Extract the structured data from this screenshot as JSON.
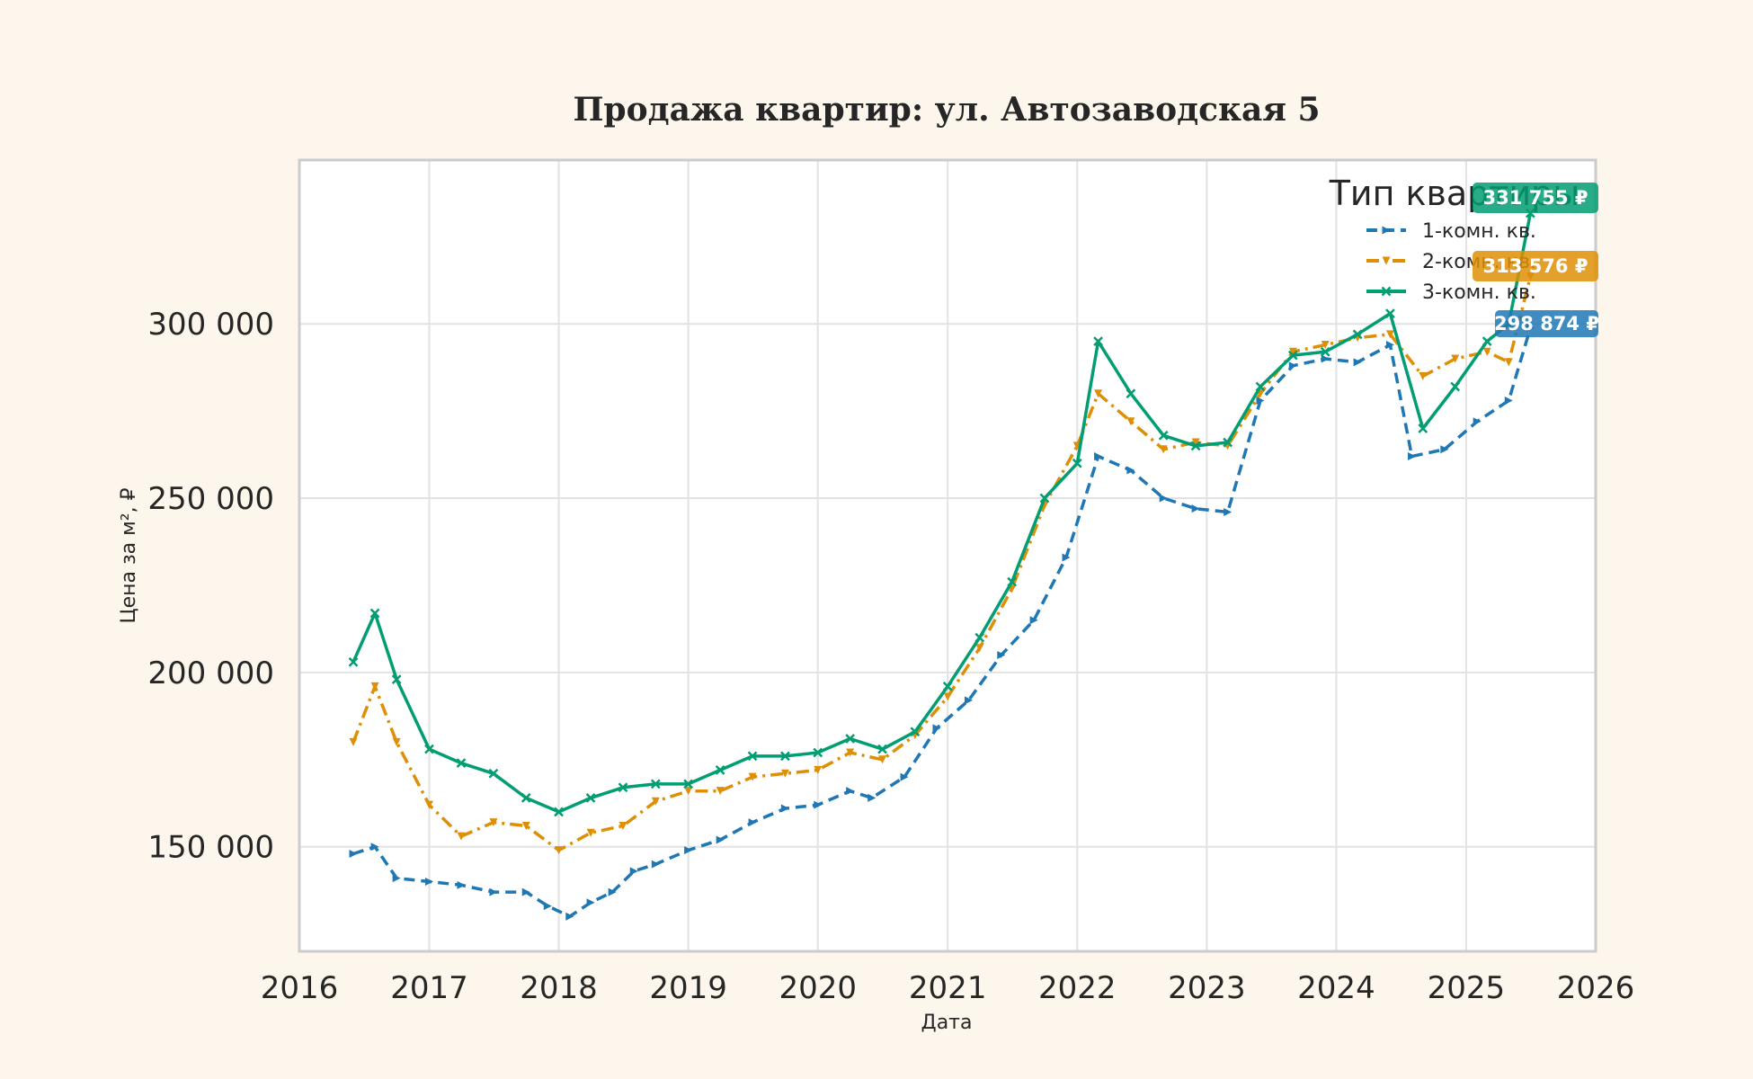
{
  "chart_data": {
    "type": "line",
    "title": "Продажа квартир: ул. Автозаводская 5",
    "xlabel": "Дата",
    "ylabel": "Цена за м², ₽",
    "xlim": [
      "2016-01-01",
      "2026-01-01"
    ],
    "ylim": [
      120000,
      347000
    ],
    "x_ticks": [
      "2016",
      "2017",
      "2018",
      "2019",
      "2020",
      "2021",
      "2022",
      "2023",
      "2024",
      "2025",
      "2026"
    ],
    "y_ticks": [
      150000,
      200000,
      250000,
      300000
    ],
    "y_tick_labels": [
      "150 000",
      "200 000",
      "250 000",
      "300 000"
    ],
    "grid": true,
    "legend": {
      "title": "Тип квартиры",
      "position": "top-right",
      "entries": [
        "1-комн. кв.",
        "2-комн. кв.",
        "3-комн. кв."
      ]
    },
    "series": [
      {
        "name": "1-комн. кв.",
        "color": "#1f77b4",
        "dash": "dashed",
        "marker": "triangle-right",
        "last_value_label": "298 874 ₽",
        "points": [
          [
            "2016-06-01",
            148000
          ],
          [
            "2016-08-01",
            150000
          ],
          [
            "2016-10-01",
            141000
          ],
          [
            "2017-01-01",
            140000
          ],
          [
            "2017-04-01",
            139000
          ],
          [
            "2017-07-01",
            137000
          ],
          [
            "2017-10-01",
            137000
          ],
          [
            "2017-12-01",
            133000
          ],
          [
            "2018-02-01",
            130000
          ],
          [
            "2018-04-01",
            134000
          ],
          [
            "2018-06-01",
            137000
          ],
          [
            "2018-08-01",
            143000
          ],
          [
            "2018-10-01",
            145000
          ],
          [
            "2019-01-01",
            149000
          ],
          [
            "2019-04-01",
            152000
          ],
          [
            "2019-07-01",
            157000
          ],
          [
            "2019-10-01",
            161000
          ],
          [
            "2020-01-01",
            162000
          ],
          [
            "2020-04-01",
            166000
          ],
          [
            "2020-06-01",
            164000
          ],
          [
            "2020-09-01",
            170000
          ],
          [
            "2020-12-01",
            184000
          ],
          [
            "2021-03-01",
            192000
          ],
          [
            "2021-06-01",
            205000
          ],
          [
            "2021-09-01",
            215000
          ],
          [
            "2021-12-01",
            233000
          ],
          [
            "2022-03-01",
            262000
          ],
          [
            "2022-06-01",
            258000
          ],
          [
            "2022-09-01",
            250000
          ],
          [
            "2022-12-01",
            247000
          ],
          [
            "2023-03-01",
            246000
          ],
          [
            "2023-06-01",
            278000
          ],
          [
            "2023-09-01",
            288000
          ],
          [
            "2023-12-01",
            290000
          ],
          [
            "2024-03-01",
            289000
          ],
          [
            "2024-06-01",
            294000
          ],
          [
            "2024-08-01",
            262000
          ],
          [
            "2024-11-01",
            264000
          ],
          [
            "2025-02-01",
            272000
          ],
          [
            "2025-05-01",
            278000
          ],
          [
            "2025-07-01",
            298874
          ]
        ]
      },
      {
        "name": "2-комн. кв.",
        "color": "#de8f05",
        "dash": "dashdot",
        "marker": "triangle-down",
        "last_value_label": "313 576 ₽",
        "points": [
          [
            "2016-06-01",
            180000
          ],
          [
            "2016-08-01",
            196000
          ],
          [
            "2016-10-01",
            180000
          ],
          [
            "2017-01-01",
            162000
          ],
          [
            "2017-04-01",
            153000
          ],
          [
            "2017-07-01",
            157000
          ],
          [
            "2017-10-01",
            156000
          ],
          [
            "2018-01-01",
            149000
          ],
          [
            "2018-04-01",
            154000
          ],
          [
            "2018-07-01",
            156000
          ],
          [
            "2018-10-01",
            163000
          ],
          [
            "2019-01-01",
            166000
          ],
          [
            "2019-04-01",
            166000
          ],
          [
            "2019-07-01",
            170000
          ],
          [
            "2019-10-01",
            171000
          ],
          [
            "2020-01-01",
            172000
          ],
          [
            "2020-04-01",
            177000
          ],
          [
            "2020-07-01",
            175000
          ],
          [
            "2020-10-01",
            182000
          ],
          [
            "2021-01-01",
            193000
          ],
          [
            "2021-04-01",
            207000
          ],
          [
            "2021-07-01",
            224000
          ],
          [
            "2021-10-01",
            248000
          ],
          [
            "2022-01-01",
            265000
          ],
          [
            "2022-03-01",
            280000
          ],
          [
            "2022-06-01",
            272000
          ],
          [
            "2022-09-01",
            264000
          ],
          [
            "2022-12-01",
            266000
          ],
          [
            "2023-03-01",
            265000
          ],
          [
            "2023-06-01",
            280000
          ],
          [
            "2023-09-01",
            292000
          ],
          [
            "2023-12-01",
            294000
          ],
          [
            "2024-03-01",
            296000
          ],
          [
            "2024-06-01",
            297000
          ],
          [
            "2024-09-01",
            285000
          ],
          [
            "2024-12-01",
            290000
          ],
          [
            "2025-03-01",
            292000
          ],
          [
            "2025-05-01",
            289000
          ],
          [
            "2025-07-01",
            313576
          ]
        ]
      },
      {
        "name": "3-комн. кв.",
        "color": "#029e73",
        "dash": "solid",
        "marker": "x",
        "last_value_label": "331 755 ₽",
        "points": [
          [
            "2016-06-01",
            203000
          ],
          [
            "2016-08-01",
            217000
          ],
          [
            "2016-10-01",
            198000
          ],
          [
            "2017-01-01",
            178000
          ],
          [
            "2017-04-01",
            174000
          ],
          [
            "2017-07-01",
            171000
          ],
          [
            "2017-10-01",
            164000
          ],
          [
            "2018-01-01",
            160000
          ],
          [
            "2018-04-01",
            164000
          ],
          [
            "2018-07-01",
            167000
          ],
          [
            "2018-10-01",
            168000
          ],
          [
            "2019-01-01",
            168000
          ],
          [
            "2019-04-01",
            172000
          ],
          [
            "2019-07-01",
            176000
          ],
          [
            "2019-10-01",
            176000
          ],
          [
            "2020-01-01",
            177000
          ],
          [
            "2020-04-01",
            181000
          ],
          [
            "2020-07-01",
            178000
          ],
          [
            "2020-10-01",
            183000
          ],
          [
            "2021-01-01",
            196000
          ],
          [
            "2021-04-01",
            210000
          ],
          [
            "2021-07-01",
            226000
          ],
          [
            "2021-10-01",
            250000
          ],
          [
            "2022-01-01",
            260000
          ],
          [
            "2022-03-01",
            295000
          ],
          [
            "2022-06-01",
            280000
          ],
          [
            "2022-09-01",
            268000
          ],
          [
            "2022-12-01",
            265000
          ],
          [
            "2023-03-01",
            266000
          ],
          [
            "2023-06-01",
            282000
          ],
          [
            "2023-09-01",
            291000
          ],
          [
            "2023-12-01",
            292000
          ],
          [
            "2024-03-01",
            297000
          ],
          [
            "2024-06-01",
            303000
          ],
          [
            "2024-09-01",
            270000
          ],
          [
            "2024-12-01",
            282000
          ],
          [
            "2025-03-01",
            295000
          ],
          [
            "2025-05-01",
            300000
          ],
          [
            "2025-07-01",
            331755
          ]
        ]
      }
    ]
  }
}
